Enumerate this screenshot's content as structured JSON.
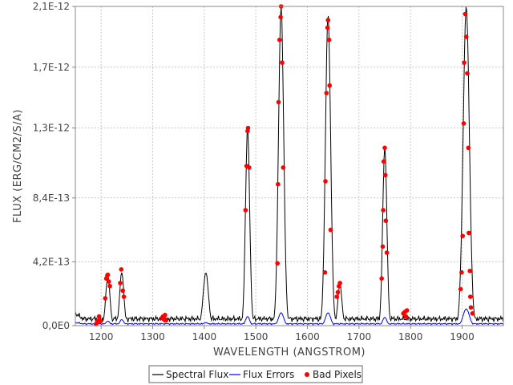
{
  "chart_data": {
    "type": "line",
    "xlabel": "WAVELENGTH (ANGSTROM)",
    "ylabel": "FLUX (ERG/CM2/S/A)",
    "xlim": [
      1150,
      1980
    ],
    "ylim": [
      0,
      2.1e-12
    ],
    "xticks": [
      1200,
      1300,
      1400,
      1500,
      1600,
      1700,
      1800,
      1900
    ],
    "xtick_labels": [
      "1200",
      "1300",
      "1400",
      "1500",
      "1600",
      "1700",
      "1800",
      "1900"
    ],
    "yticks": [
      0,
      4.2e-13,
      8.4e-13,
      1.3e-12,
      1.7e-12,
      2.1e-12
    ],
    "ytick_labels": [
      "0,0E0",
      "4,2E-13",
      "8,4E-13",
      "1,3E-12",
      "1,7E-12",
      "2,1E-12"
    ],
    "grid": true,
    "legend_position": "bottom",
    "series": [
      {
        "name": "Spectral Flux",
        "color": "#000000",
        "continuum": 4.5e-14,
        "peaks": [
          {
            "x": 1213,
            "y": 3.3e-13,
            "w": 4
          },
          {
            "x": 1240,
            "y": 3.5e-13,
            "w": 4
          },
          {
            "x": 1403,
            "y": 3.5e-13,
            "w": 5
          },
          {
            "x": 1484,
            "y": 1.3e-12,
            "w": 4
          },
          {
            "x": 1549,
            "y": 2.1e-12,
            "w": 5
          },
          {
            "x": 1640,
            "y": 2.05e-12,
            "w": 5
          },
          {
            "x": 1663,
            "y": 2.7e-13,
            "w": 4
          },
          {
            "x": 1750,
            "y": 1.18e-12,
            "w": 4
          },
          {
            "x": 1908,
            "y": 2.1e-12,
            "w": 6
          }
        ]
      },
      {
        "name": "Flux Errors",
        "color": "#0000ff",
        "continuum": 1.2e-14,
        "peaks": [
          {
            "x": 1213,
            "y": 3e-14,
            "w": 4
          },
          {
            "x": 1240,
            "y": 4e-14,
            "w": 4
          },
          {
            "x": 1403,
            "y": 2e-14,
            "w": 5
          },
          {
            "x": 1484,
            "y": 6e-14,
            "w": 4
          },
          {
            "x": 1549,
            "y": 8.5e-14,
            "w": 5
          },
          {
            "x": 1640,
            "y": 8.5e-14,
            "w": 5
          },
          {
            "x": 1750,
            "y": 5.5e-14,
            "w": 4
          },
          {
            "x": 1908,
            "y": 1.1e-13,
            "w": 6
          }
        ]
      },
      {
        "name": "Bad Pixels",
        "color": "#ff0000",
        "marker": "dot",
        "points": [
          [
            1190,
            1e-14
          ],
          [
            1193,
            3e-14
          ],
          [
            1196,
            6e-14
          ],
          [
            1199,
            3e-14
          ],
          [
            1208,
            1.8e-13
          ],
          [
            1210,
            3.1e-13
          ],
          [
            1212,
            3.3e-13
          ],
          [
            1213,
            3.35e-13
          ],
          [
            1215,
            2.9e-13
          ],
          [
            1217,
            2.6e-13
          ],
          [
            1237,
            2.8e-13
          ],
          [
            1239,
            3.7e-13
          ],
          [
            1242,
            2.3e-13
          ],
          [
            1244,
            1.9e-13
          ],
          [
            1318,
            5e-14
          ],
          [
            1320,
            6e-14
          ],
          [
            1322,
            4e-14
          ],
          [
            1324,
            7e-14
          ],
          [
            1326,
            3.5e-14
          ],
          [
            1480,
            7.6e-13
          ],
          [
            1482,
            1.05e-12
          ],
          [
            1484,
            1.28e-12
          ],
          [
            1485,
            1.3e-12
          ],
          [
            1487,
            1.04e-12
          ],
          [
            1542,
            4.1e-13
          ],
          [
            1543,
            9.3e-13
          ],
          [
            1544,
            1.47e-12
          ],
          [
            1546,
            1.88e-12
          ],
          [
            1548,
            2.03e-12
          ],
          [
            1549,
            2.1e-12
          ],
          [
            1551,
            1.73e-12
          ],
          [
            1553,
            1.04e-12
          ],
          [
            1634,
            3.5e-13
          ],
          [
            1635,
            9.5e-13
          ],
          [
            1637,
            1.53e-12
          ],
          [
            1639,
            1.96e-12
          ],
          [
            1640,
            2.01e-12
          ],
          [
            1642,
            1.88e-12
          ],
          [
            1643,
            1.58e-12
          ],
          [
            1645,
            6.3e-13
          ],
          [
            1657,
            1.9e-13
          ],
          [
            1659,
            2.2e-13
          ],
          [
            1661,
            2.6e-13
          ],
          [
            1663,
            2.8e-13
          ],
          [
            1744,
            3.1e-13
          ],
          [
            1746,
            5.2e-13
          ],
          [
            1747,
            7.6e-13
          ],
          [
            1748,
            1.08e-12
          ],
          [
            1750,
            1.17e-12
          ],
          [
            1751,
            9.9e-13
          ],
          [
            1752,
            6.9e-13
          ],
          [
            1754,
            4.8e-13
          ],
          [
            1786,
            8e-14
          ],
          [
            1789,
            9e-14
          ],
          [
            1791,
            6e-14
          ],
          [
            1793,
            1e-13
          ],
          [
            1897,
            2.4e-13
          ],
          [
            1899,
            3.5e-13
          ],
          [
            1901,
            5.9e-13
          ],
          [
            1903,
            1.33e-12
          ],
          [
            1904,
            1.73e-12
          ],
          [
            1906,
            2.05e-12
          ],
          [
            1908,
            1.9e-12
          ],
          [
            1910,
            1.66e-12
          ],
          [
            1912,
            1.17e-12
          ],
          [
            1913,
            6.1e-13
          ],
          [
            1915,
            3.6e-13
          ],
          [
            1916,
            1.9e-13
          ],
          [
            1917,
            1.2e-13
          ],
          [
            1920,
            8e-14
          ]
        ]
      }
    ],
    "legend": [
      "Spectral Flux",
      "Flux Errors",
      "Bad Pixels"
    ]
  }
}
